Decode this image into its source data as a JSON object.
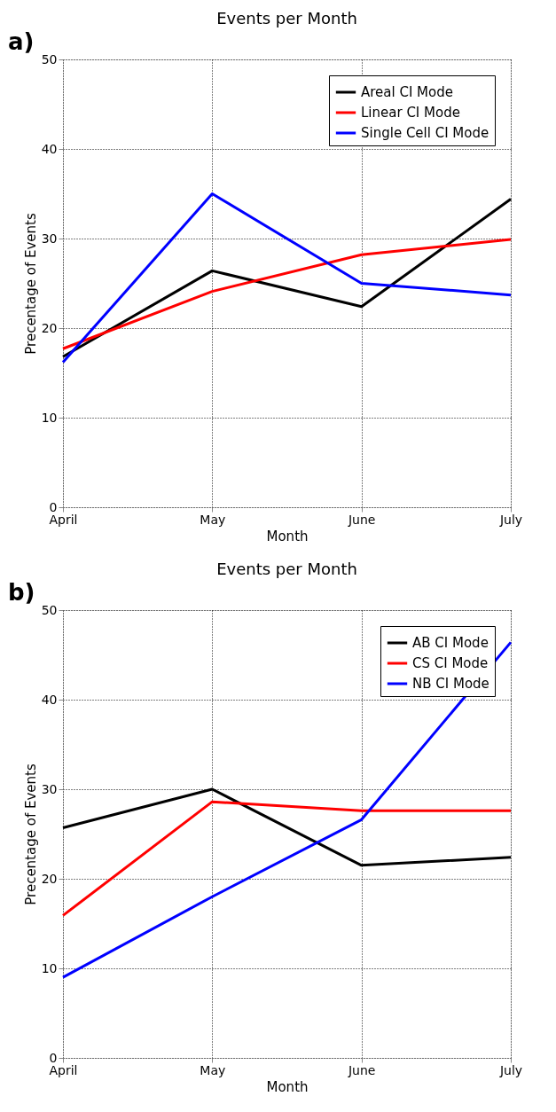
{
  "chart_data": [
    {
      "type": "line",
      "title": "Events per Month",
      "xlabel": "Month",
      "ylabel": "Precentage of Events",
      "annotations": [
        "a)"
      ],
      "categories": [
        "April",
        "May",
        "June",
        "July"
      ],
      "series": [
        {
          "name": "Areal CI Mode",
          "color": "#000000",
          "values": [
            16.8,
            26.4,
            22.4,
            34.4
          ]
        },
        {
          "name": "Linear CI Mode",
          "color": "#ff0000",
          "values": [
            17.7,
            24.1,
            28.2,
            29.9
          ]
        },
        {
          "name": "Single Cell CI Mode",
          "color": "#0000ff",
          "values": [
            16.2,
            35.0,
            25.0,
            23.7
          ]
        }
      ],
      "ylim": [
        0,
        50
      ],
      "yticks": [
        0,
        10,
        20,
        30,
        40,
        50
      ],
      "grid": true,
      "legend": "top right",
      "line_style": "solid"
    },
    {
      "type": "line",
      "title": "Events per Month",
      "xlabel": "Month",
      "ylabel": "Precentage of Events",
      "annotations": [
        "b)"
      ],
      "categories": [
        "April",
        "May",
        "June",
        "July"
      ],
      "series": [
        {
          "name": "AB CI Mode",
          "color": "#000000",
          "values": [
            25.7,
            30.0,
            21.5,
            22.4
          ]
        },
        {
          "name": "CS CI Mode",
          "color": "#ff0000",
          "values": [
            15.9,
            28.6,
            27.6,
            27.6
          ]
        },
        {
          "name": "NB CI Mode",
          "color": "#0000ff",
          "values": [
            9.0,
            18.0,
            26.6,
            46.4
          ]
        }
      ],
      "ylim": [
        0,
        50
      ],
      "yticks": [
        0,
        10,
        20,
        30,
        40,
        50
      ],
      "grid": true,
      "legend": "top right",
      "line_style": "solid"
    }
  ]
}
